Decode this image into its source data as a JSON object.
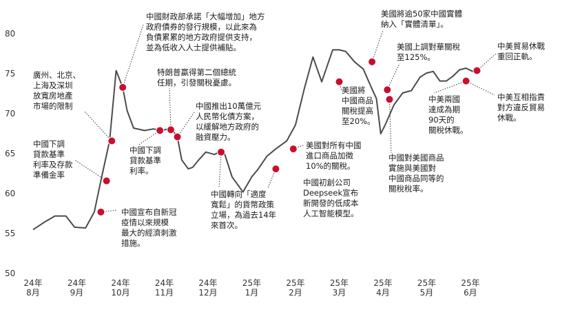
{
  "chart_data": {
    "type": "line",
    "title": "",
    "xlabel": "",
    "ylabel": "",
    "ylim": [
      50,
      82
    ],
    "yticks": [
      50,
      55,
      60,
      65,
      70,
      75,
      80
    ],
    "grid": false,
    "colors": {
      "line": "#4a4a4a",
      "marker": "#c8102e",
      "leader": "#333333"
    },
    "x_tick_labels": [
      [
        "24年",
        "8月"
      ],
      [
        "24年",
        "9月"
      ],
      [
        "24年",
        "10月"
      ],
      [
        "24年",
        "11月"
      ],
      [
        "24年",
        "12月"
      ],
      [
        "25年",
        "1月"
      ],
      [
        "25年",
        "2月"
      ],
      [
        "25年",
        "3月"
      ],
      [
        "25年",
        "4月"
      ],
      [
        "25年",
        "5月"
      ],
      [
        "25年",
        "6月"
      ]
    ],
    "series": [
      {
        "x": [
          0.0,
          0.25,
          0.5,
          0.75,
          0.95,
          1.2,
          1.4,
          1.55,
          1.75,
          1.9,
          2.05,
          2.15,
          2.3,
          2.55,
          2.75,
          2.95,
          3.15,
          3.3,
          3.4,
          3.55,
          3.65,
          3.8,
          3.95,
          4.15,
          4.35,
          4.55,
          4.8,
          5.0,
          5.15,
          5.35,
          5.55,
          5.8,
          6.0,
          6.2,
          6.4,
          6.6,
          6.85,
          7.0,
          7.15,
          7.35,
          7.55,
          7.75,
          7.85,
          7.95,
          8.05,
          8.25,
          8.45,
          8.65,
          8.85,
          9.0,
          9.15,
          9.3,
          9.45,
          9.6,
          9.75,
          9.9,
          10.05,
          10.15
        ],
        "y": [
          55.4,
          56.3,
          57.1,
          57.1,
          55.7,
          55.6,
          57.6,
          61.5,
          66.5,
          75.3,
          73.2,
          70.3,
          68.1,
          67.8,
          68.0,
          67.8,
          68.1,
          67.0,
          64.1,
          63.0,
          63.2,
          64.2,
          65.1,
          64.8,
          65.4,
          62.0,
          60.1,
          62.0,
          63.0,
          64.6,
          65.5,
          66.5,
          68.5,
          73.0,
          77.0,
          73.9,
          77.9,
          77.9,
          77.7,
          76.4,
          75.5,
          73.0,
          71.8,
          67.4,
          68.5,
          71.0,
          72.5,
          72.8,
          74.5,
          75.0,
          75.2,
          74.0,
          74.0,
          74.6,
          75.4,
          75.6,
          75.2,
          75.2
        ]
      }
    ],
    "markers": [
      {
        "x": 1.55,
        "y": 57.6
      },
      {
        "x": 1.68,
        "y": 61.5
      },
      {
        "x": 1.8,
        "y": 66.5
      },
      {
        "x": 2.05,
        "y": 73.2
      },
      {
        "x": 2.9,
        "y": 67.8
      },
      {
        "x": 3.15,
        "y": 67.9
      },
      {
        "x": 3.3,
        "y": 67.0
      },
      {
        "x": 4.3,
        "y": 65.1
      },
      {
        "x": 5.55,
        "y": 63.0
      },
      {
        "x": 5.95,
        "y": 65.5
      },
      {
        "x": 7.0,
        "y": 73.9
      },
      {
        "x": 7.75,
        "y": 76.4
      },
      {
        "x": 8.1,
        "y": 72.9
      },
      {
        "x": 8.15,
        "y": 71.7
      },
      {
        "x": 9.9,
        "y": 74.0
      },
      {
        "x": 10.15,
        "y": 75.3
      }
    ],
    "annotations": [
      {
        "lines": [
          "中國宣布自新冠",
          "疫情以來規模",
          "最大的經濟刺激",
          "措施。"
        ]
      },
      {
        "lines": [
          "中國下調",
          "貸款基準",
          "利率及存款",
          "準備金率"
        ]
      },
      {
        "lines": [
          "廣州、北京、",
          "上海及深圳",
          "放寬房地產",
          "市場的限制"
        ]
      },
      {
        "lines": [
          "中國財政部承諾「大幅增加」地方",
          "政府債券的發行規模，以此來為",
          "負債累累的地方政府提供支持，",
          "並為低收入人士提供補貼。"
        ]
      },
      {
        "lines": [
          "中國下調",
          "貸款基準",
          "利率。"
        ]
      },
      {
        "lines": [
          "特朗普贏得第二個總統",
          "任期，引發關稅憂慮。"
        ]
      },
      {
        "lines": [
          "中國推出10萬億元",
          "人民幣化債方案，",
          "以緩解地方政府的",
          "融資壓力。"
        ]
      },
      {
        "lines": [
          "中國轉向「適度",
          "寬鬆」的貨幣政策",
          "立場，為過去14年",
          "來首次。"
        ]
      },
      {
        "lines": [
          "中國初創公司",
          "Deepseek宣布",
          "新開發的低成本",
          "人工智能模型。"
        ]
      },
      {
        "lines": [
          "美國對所有中國",
          "進口商品加徵",
          "10%的關稅。"
        ]
      },
      {
        "lines": [
          "美國將",
          "中國商品",
          "關稅提高",
          "至20%。"
        ]
      },
      {
        "lines": [
          "美國將逾50家中國實體",
          "納入「實體清單」。"
        ]
      },
      {
        "lines": [
          "美國上調對華關稅",
          "至125%。"
        ]
      },
      {
        "lines": [
          "中國對美國商品",
          "實施與美國對",
          "中國商品同等的",
          "關稅稅率。"
        ]
      },
      {
        "lines": [
          "中美兩國",
          "達成為期",
          "90天的",
          "關稅休戰。"
        ]
      },
      {
        "lines": [
          "中美貿易休戰",
          "重回正軌。"
        ]
      },
      {
        "lines": [
          "中美互相指責",
          "對方違反貿易",
          "休戰。"
        ]
      }
    ]
  }
}
